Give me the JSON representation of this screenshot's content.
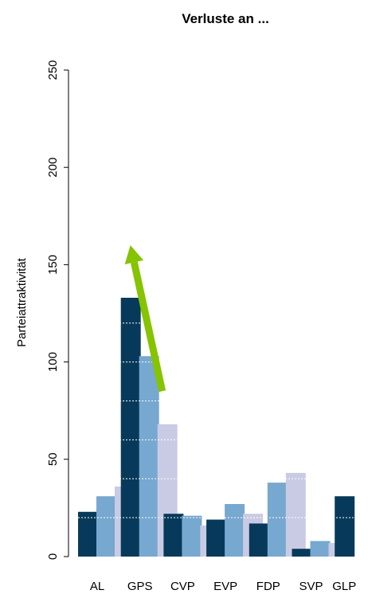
{
  "chart_data": {
    "type": "bar",
    "title": "Verluste an ...",
    "xlabel": "",
    "ylabel": "Parteiattraktivität",
    "ylim": [
      0,
      250
    ],
    "yticks": [
      0,
      50,
      100,
      150,
      200,
      250
    ],
    "grid": "dotted white horizontal lines inside bars",
    "categories": [
      "AL",
      "GPS",
      "CVP",
      "EVP",
      "FDP",
      "SVP",
      "GLP"
    ],
    "series": [
      {
        "color": "#073a5a",
        "values": [
          23,
          133,
          22,
          19,
          17,
          4,
          31
        ]
      },
      {
        "color": "#77a8cf",
        "values": [
          31,
          103,
          21,
          27,
          38,
          8,
          null
        ]
      },
      {
        "color": "#c9cbe4",
        "values": [
          36,
          68,
          16,
          22,
          43,
          7,
          null
        ]
      }
    ],
    "annotation": {
      "type": "arrow",
      "color": "#86c300",
      "from_category": "GPS",
      "from_value": 85,
      "to_value": 160
    }
  }
}
